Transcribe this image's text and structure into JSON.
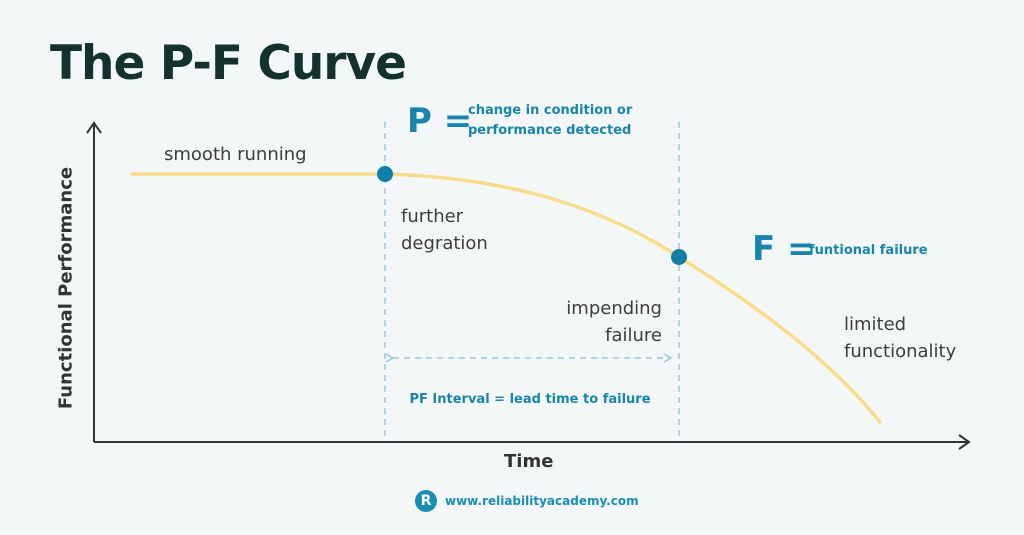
{
  "title": "The P-F Curve",
  "axes": {
    "xlabel": "Time",
    "ylabel": "Functional Performance"
  },
  "p_callout": {
    "letter": "P =",
    "text_line1": "change in condition or",
    "text_line2": "performance detected"
  },
  "f_callout": {
    "letter": "F =",
    "text": "funtional failure"
  },
  "notes": {
    "smooth_running": "smooth running",
    "further_line1": "further",
    "further_line2": "degration",
    "impending_line1": "impending",
    "impending_line2": "failure",
    "limited_line1": "limited",
    "limited_line2": "functionality"
  },
  "interval_label": "PF Interval = lead time to failure",
  "footer": {
    "logo_letter": "R",
    "url": "www.reliabilityacademy.com"
  },
  "colors": {
    "curve": "#f9dc8a",
    "accent": "#1985ac",
    "point": "#0f7fa6",
    "dashed": "#9ec9dd",
    "axis": "#333333",
    "title": "#12322b"
  }
}
